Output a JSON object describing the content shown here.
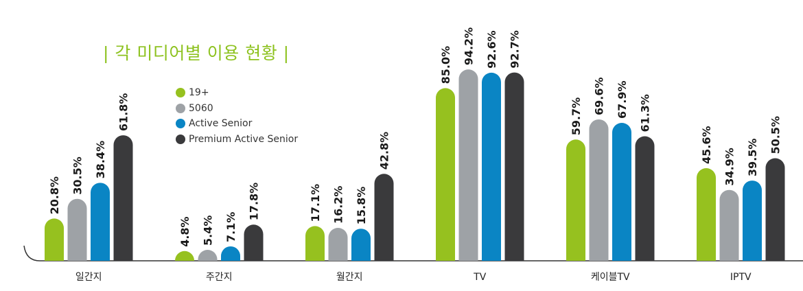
{
  "chart_data": {
    "type": "bar",
    "title": "| 각 미디어별 이용 현황 |",
    "categories": [
      "일간지",
      "주간지",
      "월간지",
      "TV",
      "케이블TV",
      "IPTV"
    ],
    "series": [
      {
        "name": "19+",
        "color": "#96c11f",
        "values": [
          20.8,
          4.8,
          17.1,
          85.0,
          59.7,
          45.6
        ],
        "labels": [
          "20.8%",
          "4.8%",
          "17.1%",
          "85.0%",
          "59.7%",
          "45.6%"
        ]
      },
      {
        "name": "5060",
        "color": "#9ea2a6",
        "values": [
          30.5,
          5.4,
          16.2,
          94.2,
          69.6,
          34.9
        ],
        "labels": [
          "30.5%",
          "5.4%",
          "16.2%",
          "94.2%",
          "69.6%",
          "34.9%"
        ]
      },
      {
        "name": "Active Senior",
        "color": "#0a85c4",
        "values": [
          38.4,
          7.1,
          15.8,
          92.6,
          67.9,
          39.5
        ],
        "labels": [
          "38.4%",
          "7.1%",
          "15.8%",
          "92.6%",
          "67.9%",
          "39.5%"
        ]
      },
      {
        "name": "Premium Active Senior",
        "color": "#3a3a3c",
        "values": [
          61.8,
          17.8,
          42.8,
          92.7,
          61.3,
          50.5
        ],
        "labels": [
          "61.8%",
          "17.8%",
          "42.8%",
          "92.7%",
          "61.3%",
          "50.5%"
        ]
      }
    ],
    "ylim": [
      0,
      100
    ],
    "grid": false,
    "legend_position": "top-left"
  }
}
